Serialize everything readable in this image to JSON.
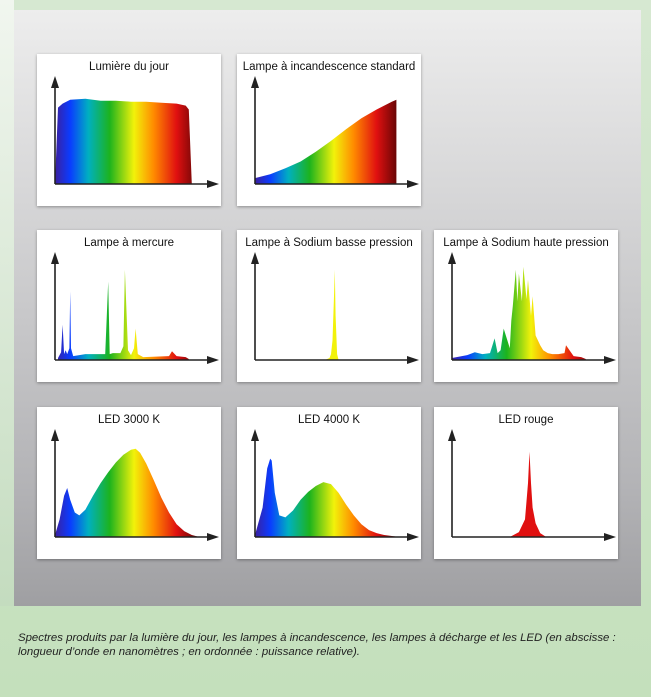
{
  "colors": {
    "violet": "#3b1fa0",
    "blue": "#0a3cff",
    "cyan": "#00b0c0",
    "green": "#1db31d",
    "yellow": "#f2f20a",
    "orange": "#ff8a00",
    "red": "#e01010",
    "dark_red": "#2a0000"
  },
  "caption": "Spectres produits par la lumière du jour, les lampes à incandescence, les lampes à décharge et les LED (en abscisse : longueur d’onde en nanomètres ; en ordonnée : puissance relative).",
  "chart_data": [
    {
      "type": "area",
      "title": "Lumière du jour",
      "xlabel": "",
      "ylabel": "",
      "xlim": [
        0,
        1
      ],
      "ylim": [
        0,
        1
      ],
      "x": [
        0,
        0.02,
        0.05,
        0.1,
        0.2,
        0.3,
        0.4,
        0.5,
        0.6,
        0.7,
        0.8,
        0.86,
        0.88,
        0.9
      ],
      "values": [
        0,
        0.78,
        0.82,
        0.86,
        0.87,
        0.85,
        0.85,
        0.84,
        0.84,
        0.83,
        0.82,
        0.8,
        0.76,
        0
      ]
    },
    {
      "type": "area",
      "title": "Lampe à incandescence standard",
      "xlabel": "",
      "ylabel": "",
      "xlim": [
        0,
        1
      ],
      "ylim": [
        0,
        1
      ],
      "x": [
        0,
        0.1,
        0.2,
        0.3,
        0.4,
        0.5,
        0.6,
        0.7,
        0.8,
        0.9,
        0.93
      ],
      "values": [
        0.06,
        0.1,
        0.16,
        0.23,
        0.33,
        0.44,
        0.56,
        0.67,
        0.76,
        0.84,
        0.86
      ]
    },
    {
      "type": "area",
      "title": "Lampe à mercure",
      "xlabel": "",
      "ylabel": "",
      "xlim": [
        0,
        1
      ],
      "ylim": [
        0,
        1
      ],
      "x": [
        0.02,
        0.04,
        0.05,
        0.06,
        0.07,
        0.08,
        0.095,
        0.1,
        0.105,
        0.12,
        0.2,
        0.33,
        0.35,
        0.36,
        0.38,
        0.43,
        0.45,
        0.46,
        0.48,
        0.5,
        0.52,
        0.53,
        0.545,
        0.58,
        0.75,
        0.77,
        0.8,
        0.86,
        0.88
      ],
      "values": [
        0.02,
        0.08,
        0.36,
        0.06,
        0.1,
        0.06,
        0.12,
        0.7,
        0.12,
        0.04,
        0.06,
        0.06,
        0.8,
        0.06,
        0.07,
        0.07,
        0.14,
        0.92,
        0.1,
        0.05,
        0.12,
        0.32,
        0.06,
        0.03,
        0.04,
        0.09,
        0.04,
        0.03,
        0.01
      ]
    },
    {
      "type": "area",
      "title": "Lampe à Sodium basse pression",
      "xlabel": "",
      "ylabel": "",
      "xlim": [
        0,
        1
      ],
      "ylim": [
        0,
        1
      ],
      "x": [
        0.46,
        0.49,
        0.5,
        0.51,
        0.52,
        0.525,
        0.53,
        0.54,
        0.55
      ],
      "values": [
        0,
        0.02,
        0.06,
        0.2,
        0.65,
        0.92,
        0.45,
        0.06,
        0
      ],
      "note_color": "yellow"
    },
    {
      "type": "area",
      "title": "Lampe à Sodium haute pression",
      "xlabel": "",
      "ylabel": "",
      "xlim": [
        0,
        1
      ],
      "ylim": [
        0,
        1
      ],
      "x": [
        0,
        0.1,
        0.15,
        0.2,
        0.25,
        0.28,
        0.3,
        0.32,
        0.34,
        0.38,
        0.39,
        0.4,
        0.42,
        0.43,
        0.44,
        0.46,
        0.47,
        0.49,
        0.5,
        0.52,
        0.53,
        0.55,
        0.58,
        0.6,
        0.63,
        0.66,
        0.7,
        0.74,
        0.75,
        0.8,
        0.85,
        0.88
      ],
      "values": [
        0.02,
        0.05,
        0.08,
        0.06,
        0.07,
        0.22,
        0.07,
        0.1,
        0.32,
        0.12,
        0.4,
        0.55,
        0.92,
        0.6,
        0.88,
        0.6,
        0.95,
        0.62,
        0.82,
        0.45,
        0.65,
        0.25,
        0.15,
        0.1,
        0.07,
        0.06,
        0.06,
        0.07,
        0.15,
        0.04,
        0.03,
        0.01
      ]
    },
    {
      "type": "area",
      "title": "LED 3000 K",
      "xlabel": "",
      "ylabel": "",
      "xlim": [
        0,
        1
      ],
      "ylim": [
        0,
        1
      ],
      "x": [
        0,
        0.03,
        0.06,
        0.08,
        0.1,
        0.13,
        0.16,
        0.2,
        0.25,
        0.3,
        0.35,
        0.4,
        0.45,
        0.5,
        0.53,
        0.56,
        0.6,
        0.65,
        0.7,
        0.75,
        0.8,
        0.85,
        0.9,
        0.95
      ],
      "values": [
        0.02,
        0.18,
        0.42,
        0.5,
        0.38,
        0.25,
        0.22,
        0.28,
        0.42,
        0.55,
        0.66,
        0.76,
        0.84,
        0.89,
        0.9,
        0.86,
        0.75,
        0.58,
        0.4,
        0.25,
        0.13,
        0.06,
        0.02,
        0
      ]
    },
    {
      "type": "area",
      "title": "LED 4000 K",
      "xlabel": "",
      "ylabel": "",
      "xlim": [
        0,
        1
      ],
      "ylim": [
        0,
        1
      ],
      "x": [
        0,
        0.05,
        0.08,
        0.1,
        0.11,
        0.13,
        0.16,
        0.2,
        0.25,
        0.3,
        0.35,
        0.4,
        0.45,
        0.5,
        0.55,
        0.6,
        0.65,
        0.7,
        0.75,
        0.8,
        0.85,
        0.9,
        0.95
      ],
      "values": [
        0.02,
        0.3,
        0.7,
        0.8,
        0.78,
        0.45,
        0.22,
        0.2,
        0.27,
        0.38,
        0.46,
        0.52,
        0.56,
        0.54,
        0.45,
        0.33,
        0.22,
        0.13,
        0.07,
        0.04,
        0.02,
        0.01,
        0
      ]
    },
    {
      "type": "area",
      "title": "LED rouge",
      "xlabel": "",
      "ylabel": "",
      "xlim": [
        0,
        1
      ],
      "ylim": [
        0,
        1
      ],
      "x": [
        0.38,
        0.44,
        0.48,
        0.5,
        0.51,
        0.52,
        0.53,
        0.55,
        0.58,
        0.62
      ],
      "values": [
        0,
        0.05,
        0.18,
        0.55,
        0.87,
        0.55,
        0.3,
        0.14,
        0.04,
        0
      ],
      "note_color": "red"
    }
  ]
}
